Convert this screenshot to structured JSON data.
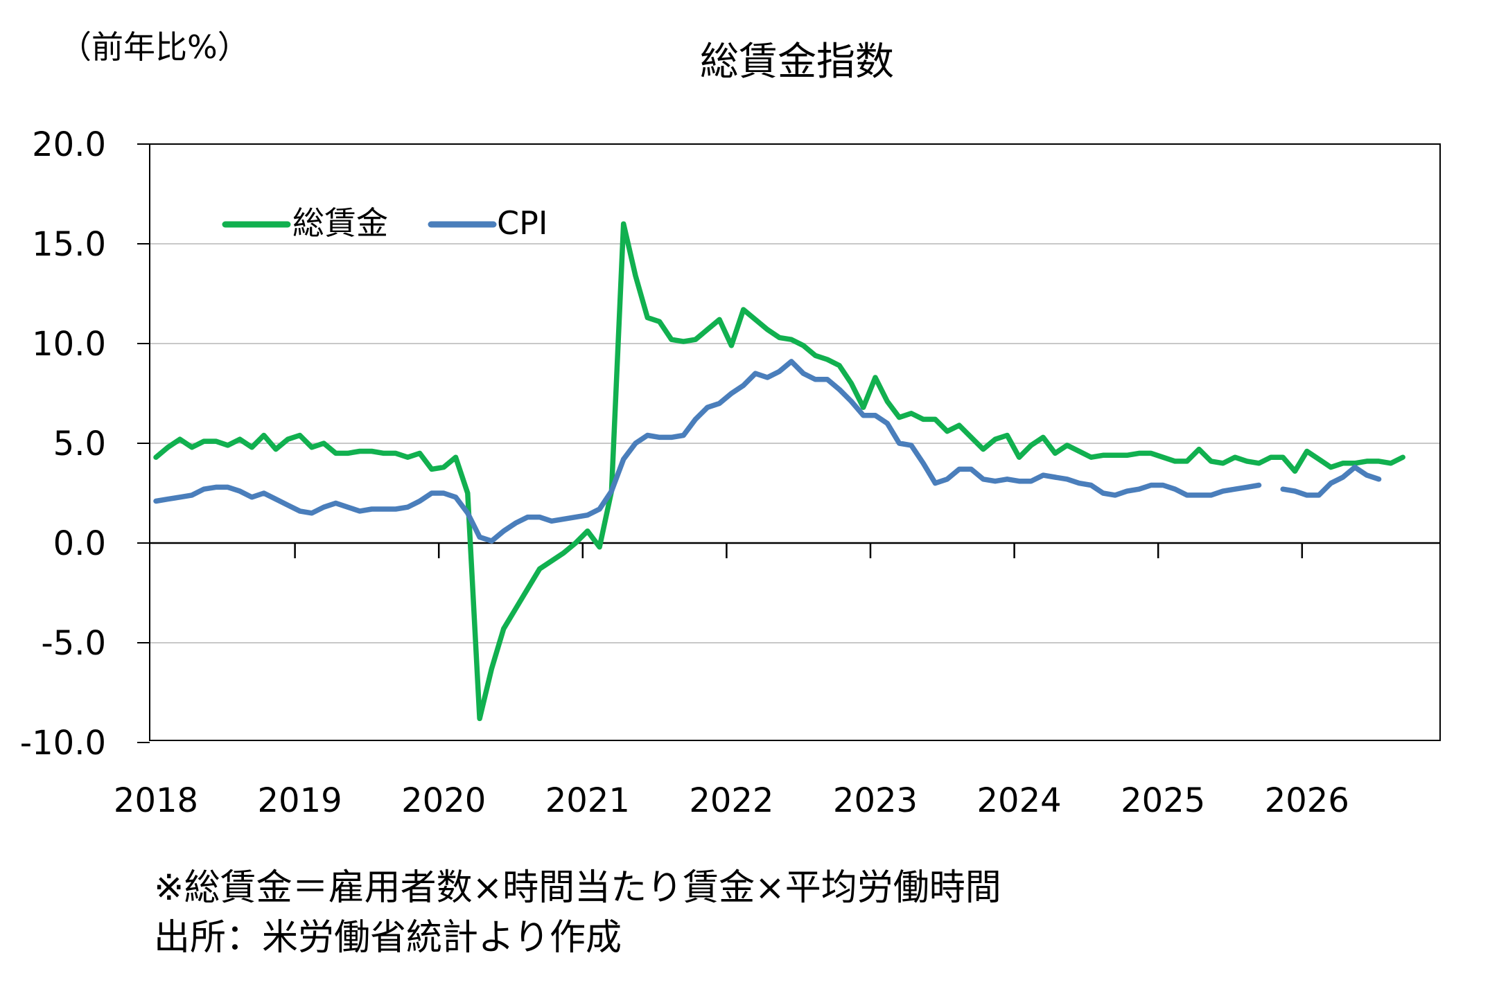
{
  "chart_data": {
    "type": "line",
    "title": "総賃金指数",
    "ylabel": "（前年比%）",
    "xlabel": "",
    "ylim": [
      -10,
      20
    ],
    "yticks": [
      "20.0",
      "15.0",
      "10.0",
      "5.0",
      "0.0",
      "-5.0",
      "-10.0"
    ],
    "xticks": [
      "2018",
      "2019",
      "2020",
      "2021",
      "2022",
      "2023",
      "2024",
      "2025",
      "2026"
    ],
    "grid": true,
    "legend_position": "top-left",
    "series": [
      {
        "name": "総賃金",
        "color": "#11b04f",
        "values": [
          4.3,
          4.8,
          5.2,
          4.8,
          5.1,
          5.1,
          4.9,
          5.2,
          4.8,
          5.4,
          4.7,
          5.2,
          5.4,
          4.8,
          5.0,
          4.5,
          4.5,
          4.6,
          4.6,
          4.5,
          4.5,
          4.3,
          4.5,
          3.7,
          3.8,
          4.3,
          2.5,
          -8.8,
          -6.3,
          -4.3,
          -3.3,
          -2.3,
          -1.3,
          -0.9,
          -0.5,
          0.0,
          0.6,
          -0.2,
          2.6,
          16.0,
          13.4,
          11.3,
          11.1,
          10.2,
          10.1,
          10.2,
          10.7,
          11.2,
          9.9,
          11.7,
          11.2,
          10.7,
          10.3,
          10.2,
          9.9,
          9.4,
          9.2,
          8.9,
          8.0,
          6.8,
          8.3,
          7.1,
          6.3,
          6.5,
          6.2,
          6.2,
          5.6,
          5.9,
          5.3,
          4.7,
          5.2,
          5.4,
          4.3,
          4.9,
          5.3,
          4.5,
          4.9,
          4.6,
          4.3,
          4.4,
          4.4,
          4.4,
          4.5,
          4.5,
          4.3,
          4.1,
          4.1,
          4.7,
          4.1,
          4.0,
          4.3,
          4.1,
          4.0,
          4.3,
          4.3,
          3.6,
          4.6,
          4.2,
          3.8,
          4.0,
          4.0,
          4.1,
          4.1,
          4.0,
          4.3
        ]
      },
      {
        "name": "CPI",
        "color": "#4a7ebb",
        "values": [
          2.1,
          2.2,
          2.3,
          2.4,
          2.7,
          2.8,
          2.8,
          2.6,
          2.3,
          2.5,
          2.2,
          1.9,
          1.6,
          1.5,
          1.8,
          2.0,
          1.8,
          1.6,
          1.7,
          1.7,
          1.7,
          1.8,
          2.1,
          2.5,
          2.5,
          2.3,
          1.5,
          0.3,
          0.1,
          0.6,
          1.0,
          1.3,
          1.3,
          1.1,
          1.2,
          1.3,
          1.4,
          1.7,
          2.6,
          4.2,
          5.0,
          5.4,
          5.3,
          5.3,
          5.4,
          6.2,
          6.8,
          7.0,
          7.5,
          7.9,
          8.5,
          8.3,
          8.6,
          9.1,
          8.5,
          8.2,
          8.2,
          7.7,
          7.1,
          6.4,
          6.4,
          6.0,
          5.0,
          4.9,
          4.0,
          3.0,
          3.2,
          3.7,
          3.7,
          3.2,
          3.1,
          3.2,
          3.1,
          3.1,
          3.4,
          3.3,
          3.2,
          3.0,
          2.9,
          2.5,
          2.4,
          2.6,
          2.7,
          2.9,
          2.9,
          2.7,
          2.4,
          2.4,
          2.4,
          2.6,
          2.7,
          2.8,
          2.9,
          null,
          2.7,
          2.6,
          2.4,
          2.4,
          3.0,
          3.3,
          3.8,
          3.4,
          3.2
        ]
      }
    ]
  },
  "footnotes": {
    "note": "※総賃金＝雇用者数×時間当たり賃金×平均労働時間",
    "source": "出所：米労働省統計より作成"
  }
}
